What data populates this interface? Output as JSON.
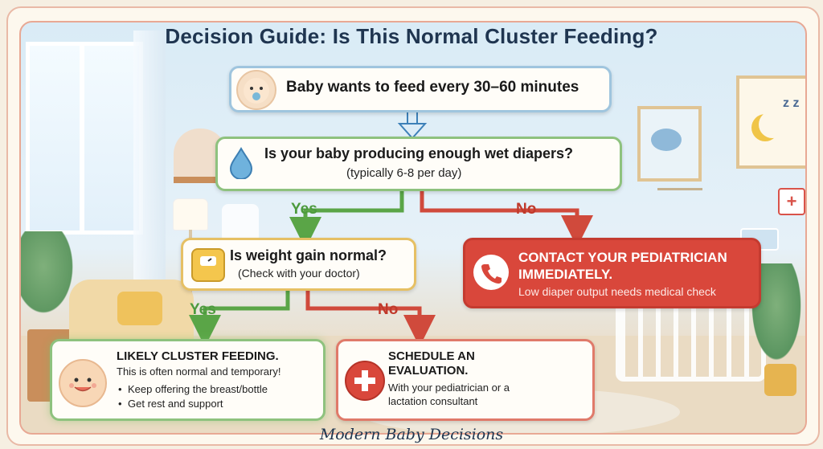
{
  "title": "Decision Guide: Is This Normal Cluster Feeding?",
  "start": {
    "text": "Baby wants to feed every 30–60 minutes",
    "icon": "baby-pacifier-icon"
  },
  "q1": {
    "text": "Is your baby producing enough wet diapers?",
    "sub": "(typically 6-8 per day)",
    "icon": "water-drop-icon"
  },
  "q1_yes": "Yes",
  "q1_no": "No",
  "q2": {
    "text": "Is weight gain normal?",
    "sub": "(Check with your doctor)",
    "icon": "scale-icon"
  },
  "q2_yes": "Yes",
  "q2_no": "No",
  "contact": {
    "title_line1": "CONTACT YOUR PEDIATRICIAN",
    "title_line2": "IMMEDIATELY.",
    "sub": "Low diaper output needs medical check",
    "icon": "phone-icon"
  },
  "likely": {
    "title": "LIKELY CLUSTER FEEDING.",
    "sub": "This is often normal and temporary!",
    "bullets": [
      "Keep offering the breast/bottle",
      "Get rest and support"
    ],
    "icon": "smiling-baby-icon"
  },
  "schedule": {
    "title_line1": "SCHEDULE AN",
    "title_line2": "EVALUATION.",
    "sub_line1": "With your pediatrician or a",
    "sub_line2": "lactation consultant",
    "icon": "medical-cross-icon"
  },
  "footer": "Modern Baby Decisions",
  "colors": {
    "navy": "#1f3550",
    "green": "#5aa547",
    "red": "#d9473b",
    "gold": "#e6c064",
    "blue_border": "#9fc5de"
  }
}
